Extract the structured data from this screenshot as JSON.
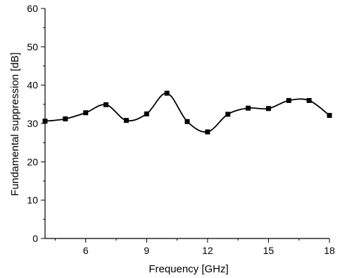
{
  "chart_data": {
    "type": "line",
    "title": "",
    "xlabel": "Frequency [GHz]",
    "ylabel": "Fundamental suppression [dB]",
    "xlim": [
      4,
      18
    ],
    "ylim": [
      0,
      60
    ],
    "x_ticks": [
      6,
      9,
      12,
      15,
      18
    ],
    "y_ticks": [
      0,
      10,
      20,
      30,
      40,
      50,
      60
    ],
    "grid": false,
    "legend": "none",
    "series": [
      {
        "color": "#000000",
        "marker": "square",
        "smooth": true,
        "x": [
          4,
          5,
          6,
          7,
          8,
          9,
          10,
          11,
          12,
          13,
          14,
          15,
          16,
          17,
          18
        ],
        "y": [
          30.6,
          31.2,
          32.8,
          34.9,
          30.8,
          32.5,
          37.9,
          30.5,
          27.8,
          32.4,
          34.0,
          33.9,
          36.0,
          36.0,
          32.1
        ]
      }
    ]
  }
}
